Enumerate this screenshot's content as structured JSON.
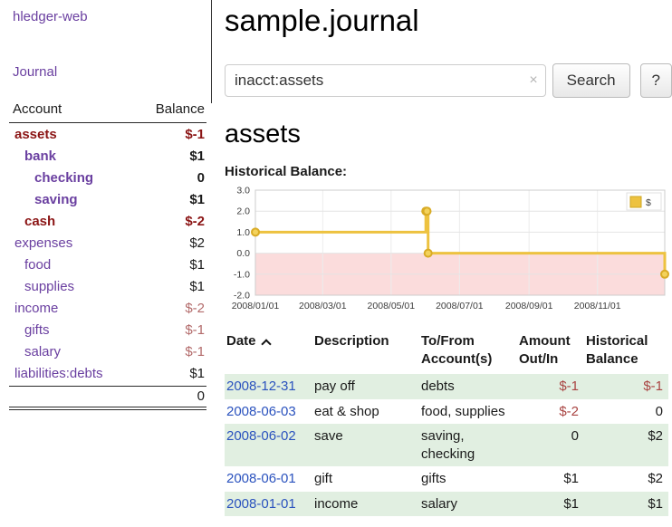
{
  "palette": {
    "link_purple": "#6a3fa0",
    "link_blue": "#2a52be",
    "maroon": "#8b1515",
    "rose": "#b36b6b",
    "negative": "#a94442",
    "row_green": "#e1efe1",
    "chart_line": "#edc240",
    "chart_negative_bg": "#fbdcdc"
  },
  "sidebar": {
    "app_title": "hledger-web",
    "journal_label": "Journal",
    "accounts_header": {
      "account": "Account",
      "balance": "Balance"
    },
    "accounts": [
      {
        "name": "assets",
        "balance": "$-1",
        "indent": 0,
        "bold": true,
        "name_color": "maroon",
        "balance_color": "maroon"
      },
      {
        "name": "bank",
        "balance": "$1",
        "indent": 1,
        "bold": true,
        "name_color": "purple",
        "balance_color": "black"
      },
      {
        "name": "checking",
        "balance": "0",
        "indent": 2,
        "bold": true,
        "name_color": "purple",
        "balance_color": "black"
      },
      {
        "name": "saving",
        "balance": "$1",
        "indent": 2,
        "bold": true,
        "name_color": "purple",
        "balance_color": "black"
      },
      {
        "name": "cash",
        "balance": "$-2",
        "indent": 1,
        "bold": true,
        "name_color": "maroon",
        "balance_color": "maroon"
      },
      {
        "name": "expenses",
        "balance": "$2",
        "indent": 0,
        "bold": false,
        "name_color": "purple",
        "balance_color": "black"
      },
      {
        "name": "food",
        "balance": "$1",
        "indent": 1,
        "bold": false,
        "name_color": "purple",
        "balance_color": "black"
      },
      {
        "name": "supplies",
        "balance": "$1",
        "indent": 1,
        "bold": false,
        "name_color": "purple",
        "balance_color": "black"
      },
      {
        "name": "income",
        "balance": "$-2",
        "indent": 0,
        "bold": false,
        "name_color": "purple",
        "balance_color": "rose"
      },
      {
        "name": "gifts",
        "balance": "$-1",
        "indent": 1,
        "bold": false,
        "name_color": "purple",
        "balance_color": "rose"
      },
      {
        "name": "salary",
        "balance": "$-1",
        "indent": 1,
        "bold": false,
        "name_color": "purple",
        "balance_color": "rose"
      },
      {
        "name": "liabilities:debts",
        "balance": "$1",
        "indent": 0,
        "bold": false,
        "name_color": "purple",
        "balance_color": "black"
      }
    ],
    "total": "0"
  },
  "header": {
    "title": "sample.journal"
  },
  "search": {
    "value": "inacct:assets",
    "clear_icon": "×",
    "button_label": "Search",
    "help_label": "?"
  },
  "account_page": {
    "title": "assets",
    "chart_label": "Historical Balance:"
  },
  "chart_data": {
    "type": "line",
    "step": true,
    "title": "Historical Balance:",
    "series": [
      {
        "name": "$",
        "points": [
          [
            "2008-01-01",
            1
          ],
          [
            "2008-06-01",
            2
          ],
          [
            "2008-06-02",
            2
          ],
          [
            "2008-06-03",
            0
          ],
          [
            "2008-12-31",
            -1
          ]
        ]
      }
    ],
    "ylim": [
      -2.0,
      3.0
    ],
    "yticks": [
      3.0,
      2.0,
      1.0,
      0.0,
      -1.0,
      -2.0
    ],
    "xticks": [
      "2008/01/01",
      "2008/03/01",
      "2008/05/01",
      "2008/07/01",
      "2008/09/01",
      "2008/11/01"
    ],
    "xlim": [
      "2008-01-01",
      "2008-12-31"
    ],
    "legend": "$",
    "legend_position": "top-right",
    "grid": true,
    "negative_region_shaded": true
  },
  "register": {
    "headers": [
      {
        "key": "date",
        "lines": [
          "Date"
        ],
        "sortable": true,
        "sort": "asc"
      },
      {
        "key": "description",
        "lines": [
          "Description"
        ]
      },
      {
        "key": "accounts",
        "lines": [
          "To/From",
          "Account(s)"
        ]
      },
      {
        "key": "amount",
        "lines": [
          "Amount",
          "Out/In"
        ],
        "align": "right"
      },
      {
        "key": "balance",
        "lines": [
          "Historical",
          "Balance"
        ],
        "align": "right"
      }
    ],
    "rows": [
      {
        "date": "2008-12-31",
        "description": "pay off",
        "accounts": "debts",
        "amount": "$-1",
        "balance": "$-1",
        "shaded": true
      },
      {
        "date": "2008-06-03",
        "description": "eat & shop",
        "accounts": "food, supplies",
        "amount": "$-2",
        "balance": "0",
        "shaded": false
      },
      {
        "date": "2008-06-02",
        "description": "save",
        "accounts": "saving, checking",
        "amount": "0",
        "balance": "$2",
        "shaded": true
      },
      {
        "date": "2008-06-01",
        "description": "gift",
        "accounts": "gifts",
        "amount": "$1",
        "balance": "$2",
        "shaded": false
      },
      {
        "date": "2008-01-01",
        "description": "income",
        "accounts": "salary",
        "amount": "$1",
        "balance": "$1",
        "shaded": true
      }
    ]
  }
}
